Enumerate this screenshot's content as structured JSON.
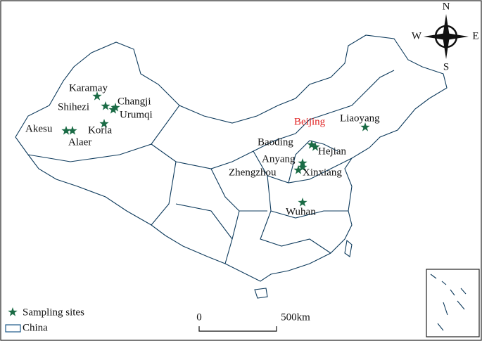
{
  "compass": {
    "north": "N",
    "south": "S",
    "east": "E",
    "west": "W"
  },
  "sites": [
    "Karamay",
    "Shihezi",
    "Changji",
    "Urumqi",
    "Korla",
    "Akesu",
    "Alaer",
    "Liaoyang",
    "Baoding",
    "Hejian",
    "Anyang",
    "Zhengzhou",
    "Xinxiang",
    "Wuhan"
  ],
  "capital": "Beijing",
  "legend": {
    "sites": "Sampling sites",
    "boundary": "China"
  },
  "scale_bar": {
    "start": "0",
    "end": "500km"
  }
}
